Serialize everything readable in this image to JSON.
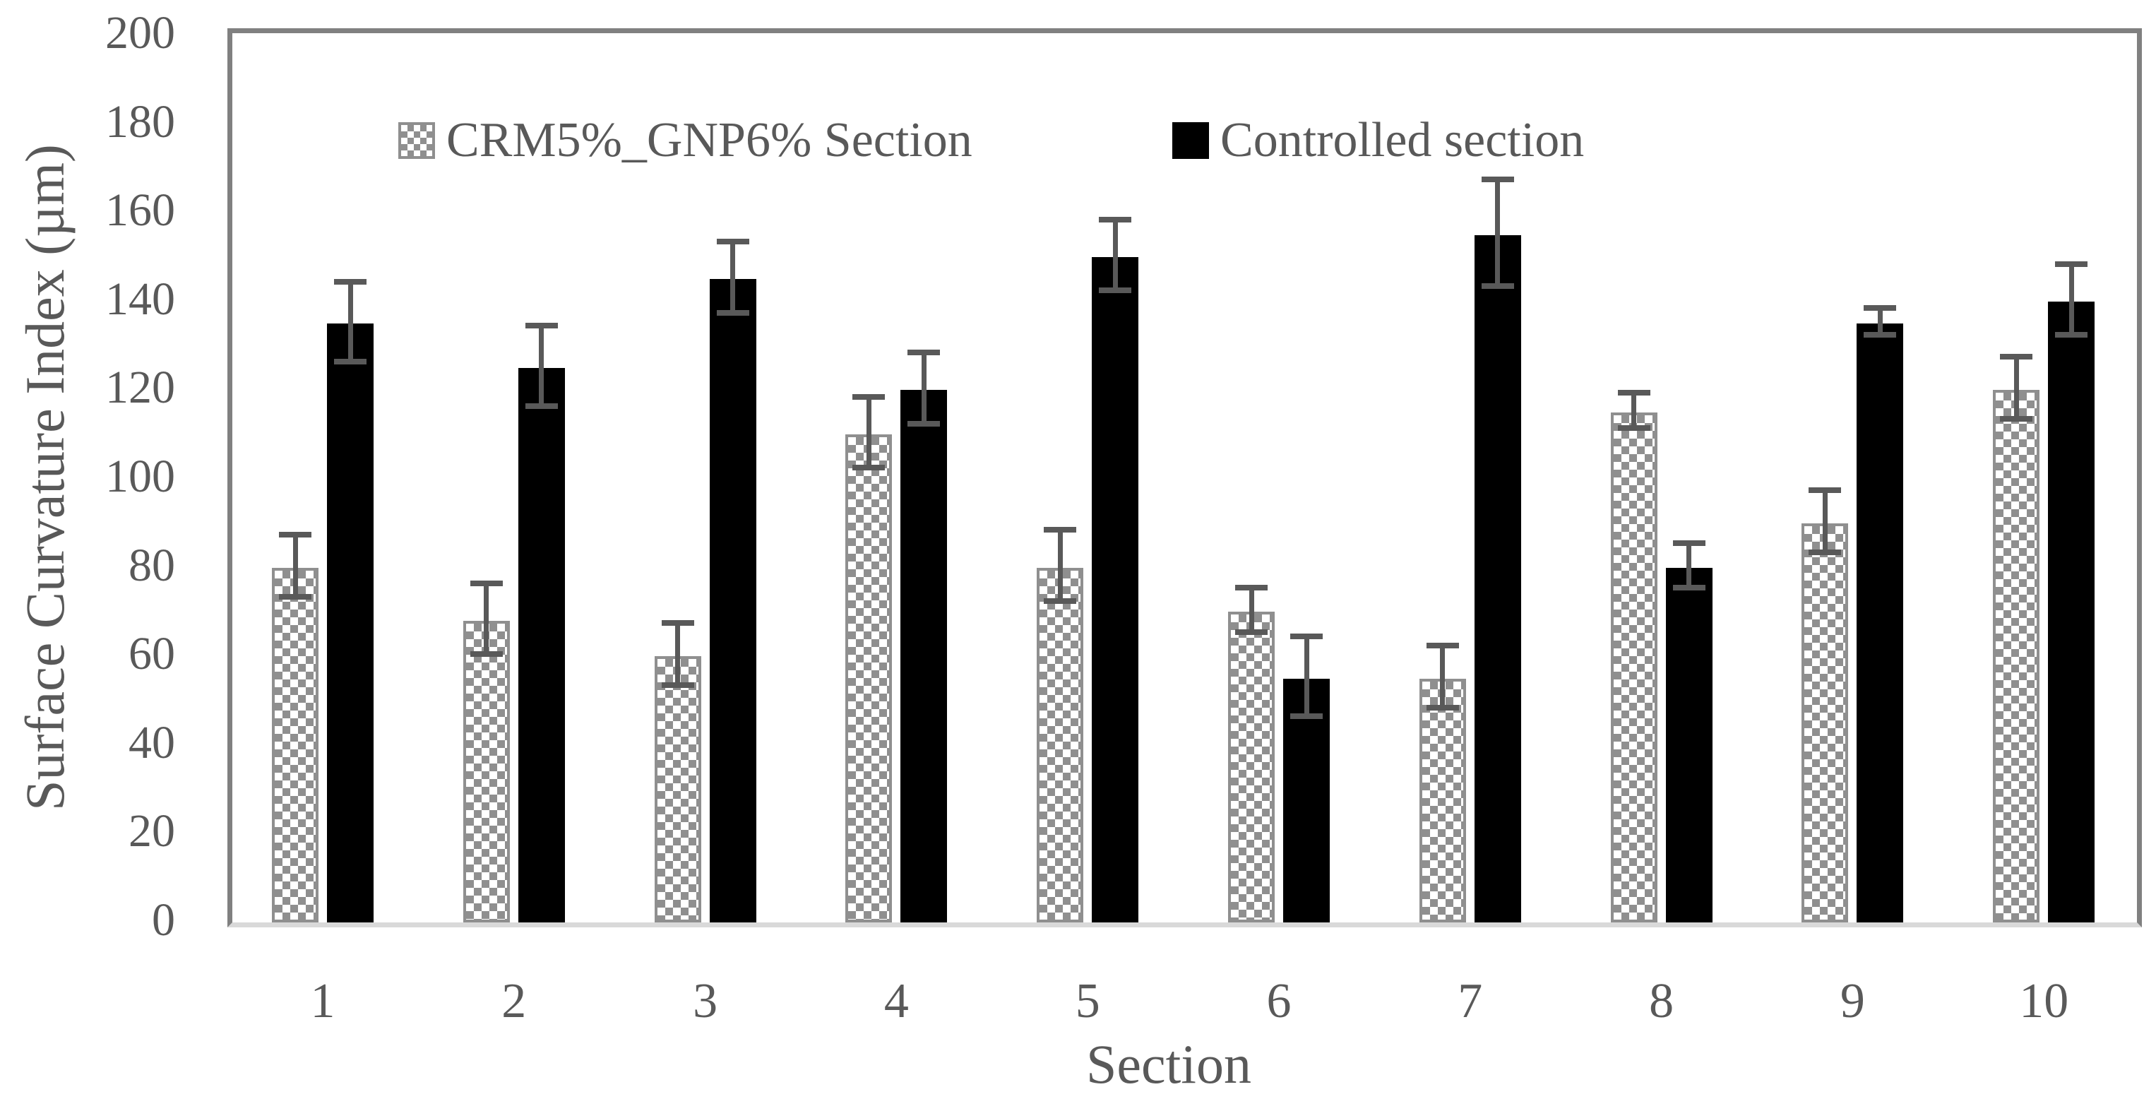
{
  "chart_data": {
    "type": "bar",
    "title": "",
    "xlabel": "Section",
    "ylabel": "Surface Curvature Index (µm)",
    "categories": [
      "1",
      "2",
      "3",
      "4",
      "5",
      "6",
      "7",
      "8",
      "9",
      "10"
    ],
    "series": [
      {
        "name": "CRM5%_GNP6% Section",
        "style": "pattern",
        "values": [
          80,
          68,
          60,
          110,
          80,
          70,
          55,
          115,
          90,
          120
        ],
        "errors": [
          7,
          8,
          7,
          8,
          8,
          5,
          7,
          4,
          7,
          7
        ]
      },
      {
        "name": "Controlled section",
        "style": "solid",
        "values": [
          135,
          125,
          145,
          120,
          150,
          55,
          155,
          80,
          135,
          140
        ],
        "errors": [
          9,
          9,
          8,
          8,
          8,
          9,
          12,
          5,
          3,
          8
        ]
      }
    ],
    "ylim": [
      0,
      200
    ],
    "yticks": [
      0,
      20,
      40,
      60,
      80,
      100,
      120,
      140,
      160,
      180,
      200
    ],
    "grid": false,
    "legend_position": "top-center",
    "error_bars": true
  },
  "colors": {
    "background": "#ffffff",
    "axis_frame": "#808080",
    "baseline": "#d9d9d9",
    "text": "#595959",
    "bar_solid": "#000000",
    "bar_pattern": "#8f8f8f",
    "error_bar": "#595959"
  }
}
